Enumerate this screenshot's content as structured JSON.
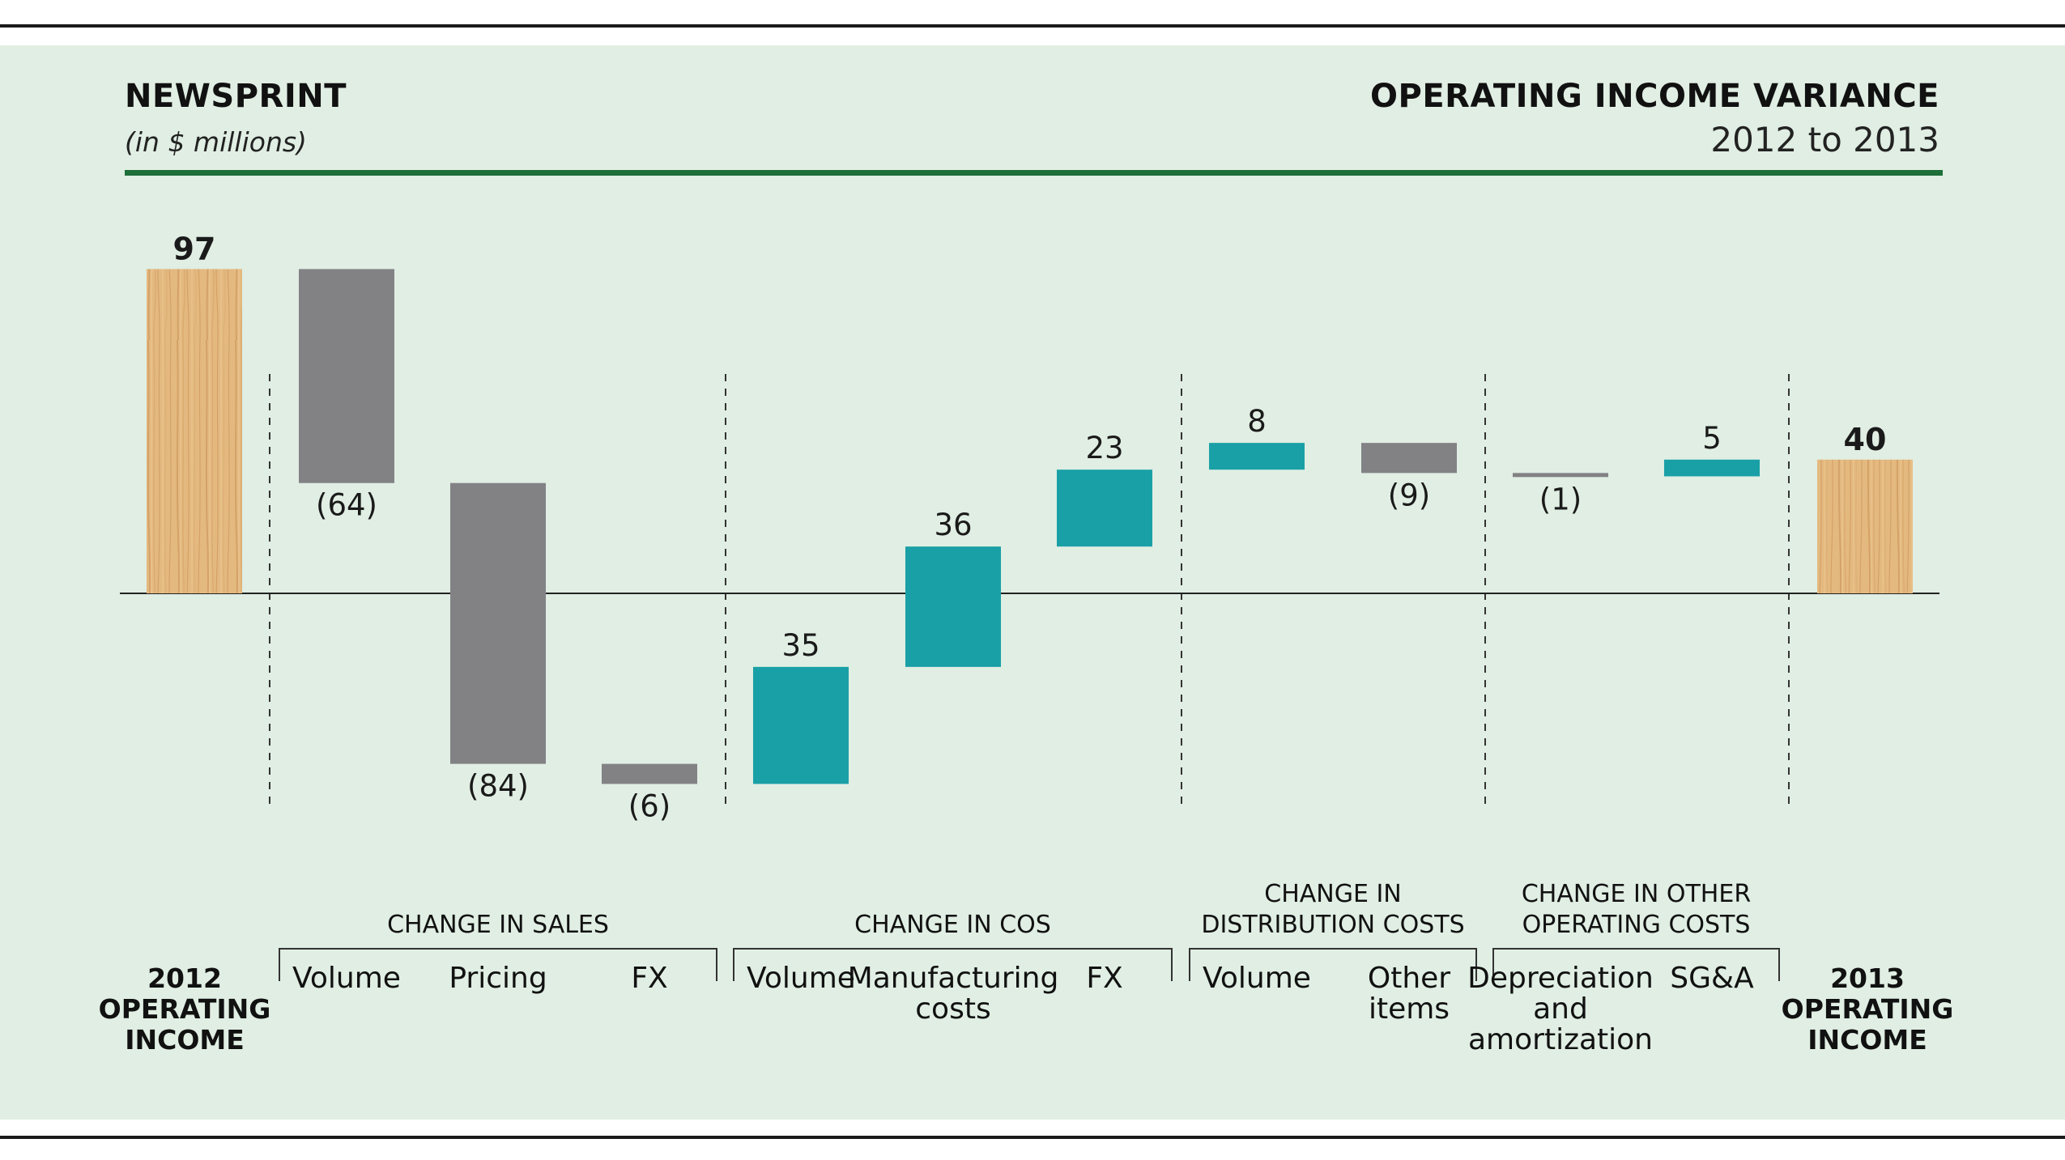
{
  "header": {
    "title_left": "NEWSPRINT",
    "subtitle_left": "(in $ millions)",
    "title_right": "OPERATING INCOME VARIANCE",
    "subtitle_right": "2012 to 2013"
  },
  "colors": {
    "background": "#e0eee3",
    "accent_rule": "#1e6f3a",
    "negative": "#828285",
    "positive": "#19a0a6",
    "wood": "#e3b77e"
  },
  "chart_data": {
    "type": "bar",
    "subtype": "waterfall",
    "title": "OPERATING INCOME VARIANCE",
    "subtitle": "2012 to 2013",
    "unit": "(in $ millions)",
    "steps": [
      {
        "label": "2012\nOPERATING\nINCOME",
        "value": 97,
        "display": "97",
        "kind": "total"
      },
      {
        "label": "Volume",
        "value": -64,
        "display": "(64)",
        "kind": "delta"
      },
      {
        "label": "Pricing",
        "value": -84,
        "display": "(84)",
        "kind": "delta"
      },
      {
        "label": "FX",
        "value": -6,
        "display": "(6)",
        "kind": "delta"
      },
      {
        "label": "Volume",
        "value": 35,
        "display": "35",
        "kind": "delta"
      },
      {
        "label": "Manufacturing\ncosts",
        "value": 36,
        "display": "36",
        "kind": "delta"
      },
      {
        "label": "FX",
        "value": 23,
        "display": "23",
        "kind": "delta"
      },
      {
        "label": "Volume",
        "value": 8,
        "display": "8",
        "kind": "delta"
      },
      {
        "label": "Other\nitems",
        "value": -9,
        "display": "(9)",
        "kind": "delta"
      },
      {
        "label": "Depreciation\nand\namortization",
        "value": -1,
        "display": "(1)",
        "kind": "delta"
      },
      {
        "label": "SG&A",
        "value": 5,
        "display": "5",
        "kind": "delta"
      },
      {
        "label": "2013\nOPERATING\nINCOME",
        "value": 40,
        "display": "40",
        "kind": "total"
      }
    ],
    "groups": [
      {
        "label": "CHANGE IN SALES",
        "from": 1,
        "to": 3
      },
      {
        "label": "CHANGE IN COS",
        "from": 4,
        "to": 6
      },
      {
        "label": "CHANGE IN\nDISTRIBUTION COSTS",
        "from": 7,
        "to": 8
      },
      {
        "label": "CHANGE IN OTHER\nOPERATING COSTS",
        "from": 9,
        "to": 10
      }
    ],
    "ylim": [
      -60,
      100
    ],
    "legend": "none",
    "grid": false
  }
}
